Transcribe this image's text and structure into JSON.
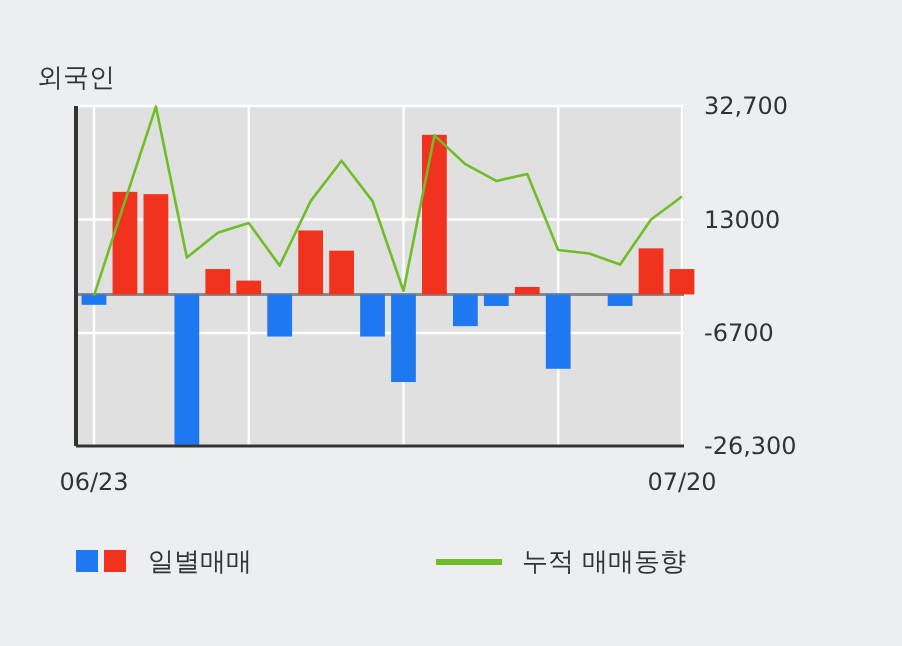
{
  "chart_data": {
    "type": "bar",
    "title": "외국인",
    "categories": [
      "06/23",
      null,
      null,
      null,
      null,
      null,
      null,
      null,
      null,
      null,
      null,
      null,
      null,
      null,
      null,
      null,
      null,
      null,
      null,
      "07/20"
    ],
    "series": [
      {
        "name": "일별매매",
        "values": [
          -1800,
          17800,
          17400,
          -26100,
          4400,
          2400,
          -7300,
          11100,
          7600,
          -7300,
          -15200,
          27700,
          -5500,
          -2000,
          1300,
          -12900,
          0,
          -2000,
          8000,
          4400
        ],
        "colors": [
          "#1e78f0",
          "#f0321e",
          "#f0321e",
          "#1e78f0",
          "#f0321e",
          "#f0321e",
          "#1e78f0",
          "#f0321e",
          "#f0321e",
          "#1e78f0",
          "#1e78f0",
          "#f0321e",
          "#1e78f0",
          "#1e78f0",
          "#f0321e",
          "#1e78f0",
          "#f0321e",
          "#1e78f0",
          "#f0321e",
          "#f0321e"
        ]
      },
      {
        "name": "누적 매매동향",
        "type": "line",
        "color": "#6fbe28",
        "values": [
          -200,
          16200,
          32600,
          6400,
          10700,
          12400,
          5000,
          16200,
          23200,
          16200,
          600,
          27600,
          22600,
          19700,
          20900,
          7700,
          7100,
          5200,
          13000,
          17000
        ]
      }
    ],
    "ylim": [
      -26300,
      32700
    ],
    "yticks": [
      {
        "value": 32700,
        "label": "32,700"
      },
      13000,
      -6700,
      {
        "value": -26300,
        "label": "-26,300"
      }
    ],
    "grid": true,
    "legend": "bottom",
    "marker": "none",
    "line_style": "solid"
  }
}
